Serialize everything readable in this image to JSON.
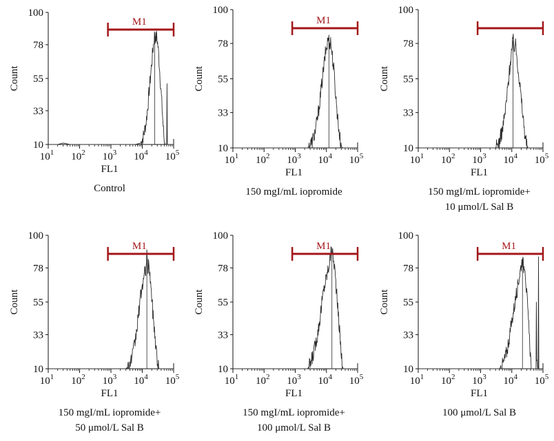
{
  "colors": {
    "axis": "#111111",
    "histogram": "#2a2a2a",
    "gate": "#a3161a"
  },
  "chart_data": [
    {
      "type": "histogram",
      "caption": [
        "Control"
      ],
      "xlabel": "FL1",
      "ylabel": "Count",
      "x_scale": "log",
      "xlim": [
        10,
        100000
      ],
      "ylim": [
        10,
        100
      ],
      "yticks": [
        "10",
        "33",
        "55",
        "78",
        "100"
      ],
      "xticks": [
        [
          "10",
          "1"
        ],
        [
          "10",
          "2"
        ],
        [
          "10",
          "3"
        ],
        [
          "10",
          "4"
        ],
        [
          "10",
          "5"
        ]
      ],
      "gate": {
        "label": "M1",
        "from": 800,
        "to": 100000
      },
      "peak": {
        "center": 25000,
        "height": 86
      },
      "points": [
        [
          10,
          10
        ],
        [
          20,
          10
        ],
        [
          30,
          11
        ],
        [
          50,
          10
        ],
        [
          100,
          10
        ],
        [
          300,
          10
        ],
        [
          1000,
          10
        ],
        [
          3000,
          10
        ],
        [
          6000,
          10
        ],
        [
          9000,
          11
        ],
        [
          11000,
          16
        ],
        [
          13000,
          24
        ],
        [
          15000,
          36
        ],
        [
          17000,
          49
        ],
        [
          19000,
          60
        ],
        [
          21000,
          71
        ],
        [
          23000,
          79
        ],
        [
          25000,
          86
        ],
        [
          27000,
          82
        ],
        [
          29000,
          84
        ],
        [
          32000,
          76
        ],
        [
          35000,
          64
        ],
        [
          38000,
          52
        ],
        [
          42000,
          38
        ],
        [
          46000,
          24
        ],
        [
          50000,
          13
        ],
        [
          55000,
          10
        ],
        [
          60000,
          10
        ],
        [
          62000,
          62
        ],
        [
          63000,
          10
        ],
        [
          100000,
          10
        ]
      ]
    },
    {
      "type": "histogram",
      "caption": [
        "150 mgI/mL iopromide"
      ],
      "xlabel": "FL1",
      "ylabel": "Count",
      "x_scale": "log",
      "xlim": [
        10,
        100000
      ],
      "ylim": [
        10,
        100
      ],
      "yticks": [
        "10",
        "33",
        "55",
        "78",
        "100"
      ],
      "xticks": [
        [
          "10",
          "1"
        ],
        [
          "10",
          "2"
        ],
        [
          "10",
          "3"
        ],
        [
          "10",
          "4"
        ],
        [
          "10",
          "5"
        ]
      ],
      "gate": {
        "label": "M1",
        "from": 800,
        "to": 100000
      },
      "peak": {
        "center": 12000,
        "height": 82
      },
      "points": [
        [
          10,
          10
        ],
        [
          100,
          10
        ],
        [
          1000,
          10
        ],
        [
          2500,
          10
        ],
        [
          3500,
          14
        ],
        [
          4500,
          22
        ],
        [
          5500,
          33
        ],
        [
          6500,
          45
        ],
        [
          7500,
          56
        ],
        [
          8500,
          65
        ],
        [
          9500,
          73
        ],
        [
          10500,
          77
        ],
        [
          11500,
          82
        ],
        [
          12500,
          78
        ],
        [
          13500,
          80
        ],
        [
          15000,
          72
        ],
        [
          17000,
          62
        ],
        [
          19000,
          50
        ],
        [
          21000,
          38
        ],
        [
          24000,
          26
        ],
        [
          27000,
          16
        ],
        [
          30000,
          11
        ],
        [
          33000,
          10
        ],
        [
          100000,
          10
        ]
      ]
    },
    {
      "type": "histogram",
      "caption": [
        "150 mgI/mL iopromide+",
        "10 μmol/L Sal B"
      ],
      "xlabel": "FL1",
      "ylabel": "Count",
      "x_scale": "log",
      "xlim": [
        10,
        100000
      ],
      "ylim": [
        10,
        100
      ],
      "yticks": [
        "10",
        "33",
        "55",
        "78",
        "100"
      ],
      "xticks": [
        [
          "10",
          "1"
        ],
        [
          "10",
          "2"
        ],
        [
          "10",
          "3"
        ],
        [
          "10",
          "4"
        ],
        [
          "10",
          "5"
        ]
      ],
      "gate": {
        "label": "",
        "from": 800,
        "to": 100000
      },
      "peak": {
        "center": 11000,
        "height": 80
      },
      "points": [
        [
          10,
          10
        ],
        [
          100,
          10
        ],
        [
          1000,
          10
        ],
        [
          3000,
          10
        ],
        [
          4000,
          14
        ],
        [
          5000,
          22
        ],
        [
          6000,
          32
        ],
        [
          7000,
          44
        ],
        [
          8000,
          56
        ],
        [
          9000,
          66
        ],
        [
          10000,
          74
        ],
        [
          11000,
          80
        ],
        [
          12000,
          76
        ],
        [
          13000,
          78
        ],
        [
          14500,
          70
        ],
        [
          16000,
          62
        ],
        [
          18000,
          52
        ],
        [
          20000,
          42
        ],
        [
          23000,
          30
        ],
        [
          26000,
          20
        ],
        [
          30000,
          12
        ],
        [
          33000,
          10
        ],
        [
          100000,
          10
        ]
      ]
    },
    {
      "type": "histogram",
      "caption": [
        "150 mgI/mL iopromide+",
        "50 μmol/L Sal B"
      ],
      "xlabel": "FL1",
      "ylabel": "Count",
      "x_scale": "log",
      "xlim": [
        10,
        100000
      ],
      "ylim": [
        10,
        100
      ],
      "yticks": [
        "10",
        "33",
        "55",
        "78",
        "100"
      ],
      "xticks": [
        [
          "10",
          "1"
        ],
        [
          "10",
          "2"
        ],
        [
          "10",
          "3"
        ],
        [
          "10",
          "4"
        ],
        [
          "10",
          "5"
        ]
      ],
      "gate": {
        "label": "M1",
        "from": 800,
        "to": 100000
      },
      "peak": {
        "center": 14000,
        "height": 86
      },
      "points": [
        [
          10,
          10
        ],
        [
          100,
          10
        ],
        [
          1000,
          10
        ],
        [
          3000,
          10
        ],
        [
          4000,
          13
        ],
        [
          5000,
          20
        ],
        [
          6000,
          29
        ],
        [
          7000,
          40
        ],
        [
          8000,
          51
        ],
        [
          9000,
          60
        ],
        [
          10000,
          66
        ],
        [
          11500,
          72
        ],
        [
          13000,
          78
        ],
        [
          14000,
          86
        ],
        [
          15000,
          76
        ],
        [
          16500,
          82
        ],
        [
          18000,
          70
        ],
        [
          20000,
          58
        ],
        [
          22000,
          46
        ],
        [
          25000,
          34
        ],
        [
          28000,
          22
        ],
        [
          31000,
          13
        ],
        [
          34000,
          10
        ],
        [
          100000,
          10
        ]
      ]
    },
    {
      "type": "histogram",
      "caption": [
        "150 mgI/mL iopromide+",
        "100 μmol/L Sal B"
      ],
      "xlabel": "FL1",
      "ylabel": "Count",
      "x_scale": "log",
      "xlim": [
        10,
        100000
      ],
      "ylim": [
        10,
        100
      ],
      "yticks": [
        "10",
        "33",
        "55",
        "78",
        "100"
      ],
      "xticks": [
        [
          "10",
          "1"
        ],
        [
          "10",
          "2"
        ],
        [
          "10",
          "3"
        ],
        [
          "10",
          "4"
        ],
        [
          "10",
          "5"
        ]
      ],
      "gate": {
        "label": "M1",
        "from": 800,
        "to": 100000
      },
      "peak": {
        "center": 15000,
        "height": 92
      },
      "points": [
        [
          10,
          10
        ],
        [
          100,
          10
        ],
        [
          1000,
          10
        ],
        [
          2500,
          10
        ],
        [
          3200,
          14
        ],
        [
          4000,
          22
        ],
        [
          5000,
          32
        ],
        [
          6000,
          42
        ],
        [
          7000,
          53
        ],
        [
          8000,
          62
        ],
        [
          9500,
          70
        ],
        [
          11000,
          76
        ],
        [
          12500,
          82
        ],
        [
          14000,
          88
        ],
        [
          15000,
          92
        ],
        [
          16500,
          84
        ],
        [
          18000,
          80
        ],
        [
          20000,
          68
        ],
        [
          22000,
          56
        ],
        [
          25000,
          42
        ],
        [
          28000,
          28
        ],
        [
          31000,
          17
        ],
        [
          34000,
          10
        ],
        [
          100000,
          10
        ]
      ]
    },
    {
      "type": "histogram",
      "caption": [
        "100 μmol/L Sal B"
      ],
      "xlabel": "FL1",
      "ylabel": "Count",
      "x_scale": "log",
      "xlim": [
        10,
        100000
      ],
      "ylim": [
        10,
        100
      ],
      "yticks": [
        "10",
        "33",
        "55",
        "78",
        "100"
      ],
      "xticks": [
        [
          "10",
          "1"
        ],
        [
          "10",
          "2"
        ],
        [
          "10",
          "3"
        ],
        [
          "10",
          "4"
        ],
        [
          "10",
          "5"
        ]
      ],
      "gate": {
        "label": "M1",
        "from": 800,
        "to": 100000
      },
      "peak": {
        "center": 22000,
        "height": 84
      },
      "points": [
        [
          10,
          10
        ],
        [
          100,
          10
        ],
        [
          1000,
          10
        ],
        [
          4000,
          10
        ],
        [
          5500,
          14
        ],
        [
          7000,
          22
        ],
        [
          8500,
          32
        ],
        [
          10000,
          42
        ],
        [
          12000,
          52
        ],
        [
          14000,
          60
        ],
        [
          16000,
          68
        ],
        [
          18000,
          74
        ],
        [
          20000,
          80
        ],
        [
          22000,
          84
        ],
        [
          24000,
          78
        ],
        [
          26000,
          82
        ],
        [
          28000,
          70
        ],
        [
          31000,
          56
        ],
        [
          34000,
          42
        ],
        [
          37000,
          30
        ],
        [
          40000,
          18
        ],
        [
          43000,
          10
        ],
        [
          60000,
          10
        ],
        [
          62000,
          64
        ],
        [
          63000,
          12
        ],
        [
          70000,
          10
        ],
        [
          72000,
          95
        ],
        [
          73000,
          10
        ],
        [
          100000,
          10
        ]
      ]
    }
  ]
}
